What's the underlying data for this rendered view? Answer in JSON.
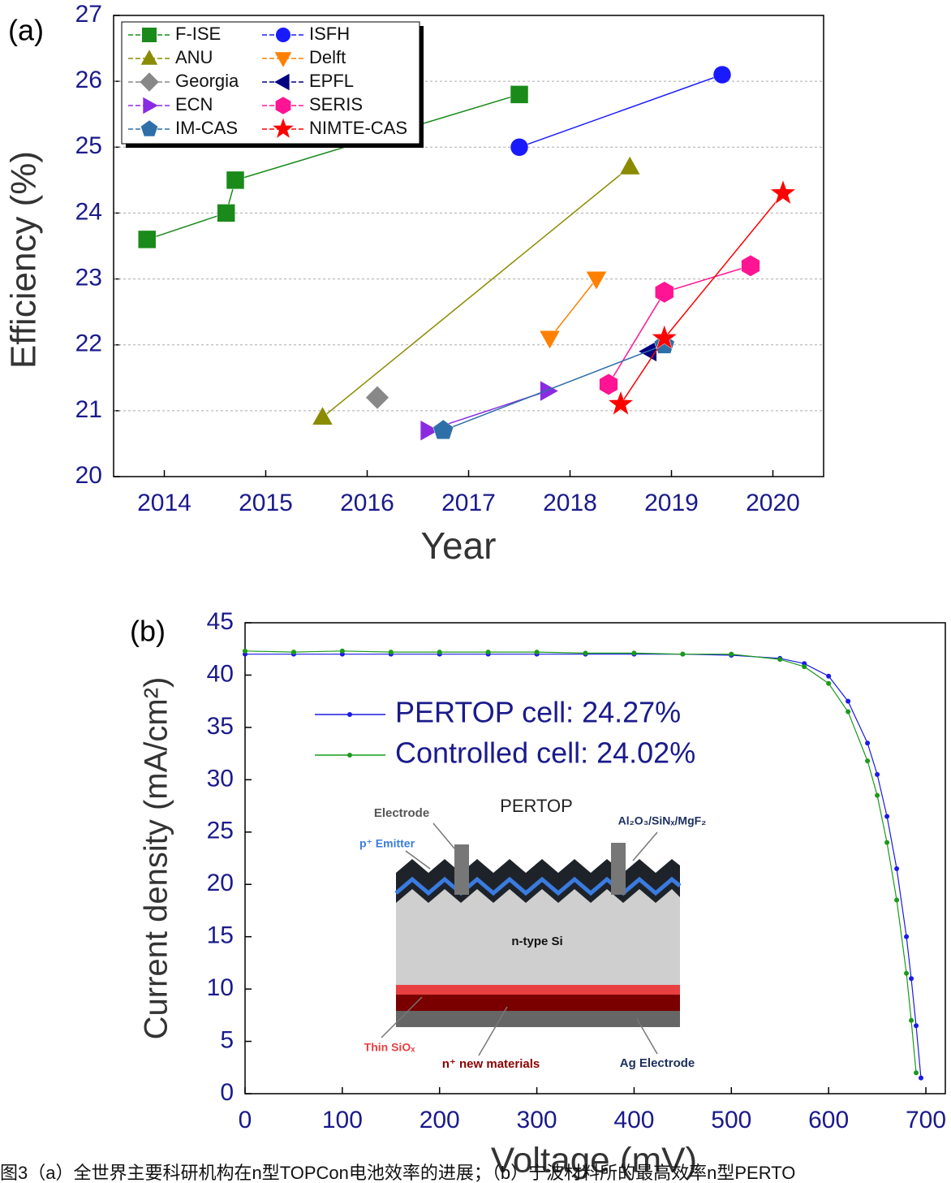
{
  "chart_data": [
    {
      "type": "line",
      "panel": "(a)",
      "xlabel": "Year",
      "ylabel": "Efficiency (%)",
      "xlim": [
        2013.5,
        2020.5
      ],
      "xticks": [
        2014,
        2015,
        2016,
        2017,
        2018,
        2019,
        2020
      ],
      "ylim": [
        20,
        27
      ],
      "yticks": [
        20,
        21,
        22,
        23,
        24,
        25,
        26,
        27
      ],
      "grid": true,
      "legend": "top-left",
      "series": [
        {
          "name": "F-ISE",
          "color": "#1a8a1a",
          "marker": "square",
          "x": [
            2013.83,
            2014.61,
            2014.7,
            2017.5
          ],
          "values": [
            23.6,
            24.0,
            24.5,
            25.8
          ]
        },
        {
          "name": "ISFH",
          "color": "#1a1aff",
          "marker": "circle",
          "x": [
            2017.5,
            2019.5
          ],
          "values": [
            25.0,
            26.1
          ]
        },
        {
          "name": "ANU",
          "color": "#8b8b00",
          "marker": "triangle-up",
          "x": [
            2015.56,
            2018.59
          ],
          "values": [
            20.9,
            24.7
          ]
        },
        {
          "name": "Delft",
          "color": "#ff8000",
          "marker": "triangle-down",
          "x": [
            2017.8,
            2018.26
          ],
          "values": [
            22.1,
            23.0
          ]
        },
        {
          "name": "Georgia",
          "color": "#888888",
          "marker": "diamond",
          "x": [
            2016.1
          ],
          "values": [
            21.2
          ]
        },
        {
          "name": "EPFL",
          "color": "#000080",
          "marker": "triangle-left",
          "x": [
            2018.78
          ],
          "values": [
            21.9
          ]
        },
        {
          "name": "ECN",
          "color": "#8a2be2",
          "marker": "triangle-right",
          "x": [
            2016.6,
            2017.78
          ],
          "values": [
            20.7,
            21.3
          ]
        },
        {
          "name": "SERIS",
          "color": "#ff1493",
          "marker": "hexagon",
          "x": [
            2018.38,
            2018.93,
            2019.78
          ],
          "values": [
            21.4,
            22.8,
            23.2
          ]
        },
        {
          "name": "IM-CAS",
          "color": "#2e6fa8",
          "marker": "pentagon",
          "x": [
            2016.75,
            2018.93
          ],
          "values": [
            20.7,
            22.0
          ]
        },
        {
          "name": "NIMTE-CAS",
          "color": "#ff0000",
          "marker": "star",
          "x": [
            2018.5,
            2018.93,
            2020.1
          ],
          "values": [
            21.1,
            22.1,
            24.3
          ]
        }
      ]
    },
    {
      "type": "line",
      "panel": "(b)",
      "xlabel": "Voltage (mV)",
      "ylabel": "Current density (mA/cm²)",
      "xlim": [
        0,
        720
      ],
      "xticks": [
        0,
        100,
        200,
        300,
        400,
        500,
        600,
        700
      ],
      "ylim": [
        0,
        45
      ],
      "yticks": [
        0,
        5,
        10,
        15,
        20,
        25,
        30,
        35,
        40,
        45
      ],
      "grid": false,
      "legend": "center",
      "x": [
        0,
        50,
        100,
        150,
        200,
        250,
        300,
        350,
        400,
        450,
        500,
        550,
        575,
        600,
        620,
        640,
        650,
        660,
        670,
        680,
        685,
        690,
        695
      ],
      "series": [
        {
          "name": "PERTOP cell: 24.27%",
          "color": "#1a1ae6",
          "values": [
            42.0,
            42.0,
            42.0,
            42.0,
            42.0,
            42.0,
            42.0,
            42.0,
            42.0,
            42.0,
            41.9,
            41.6,
            41.1,
            39.9,
            37.5,
            33.5,
            30.5,
            26.5,
            21.5,
            15.0,
            11.0,
            6.5,
            1.5
          ]
        },
        {
          "name": "Controlled cell: 24.02%",
          "color": "#1a9a1a",
          "values": [
            42.3,
            42.2,
            42.3,
            42.2,
            42.2,
            42.2,
            42.2,
            42.1,
            42.1,
            42.0,
            42.0,
            41.5,
            40.8,
            39.2,
            36.5,
            31.8,
            28.5,
            24.0,
            18.5,
            11.5,
            7.0,
            2.0,
            null
          ]
        }
      ],
      "inset": {
        "title": "PERTOP",
        "labels": [
          "Electrode",
          "p⁺ Emitter",
          "Al₂O₃/SiNₓ/MgF₂",
          "n-type Si",
          "Thin SiOₓ",
          "n⁺ new materials",
          "Ag Electrode"
        ]
      }
    }
  ],
  "caption": "图3（a）全世界主要科研机构在n型TOPCon电池效率的进展；（b）宁波材料所的最高效率n型PERTO"
}
